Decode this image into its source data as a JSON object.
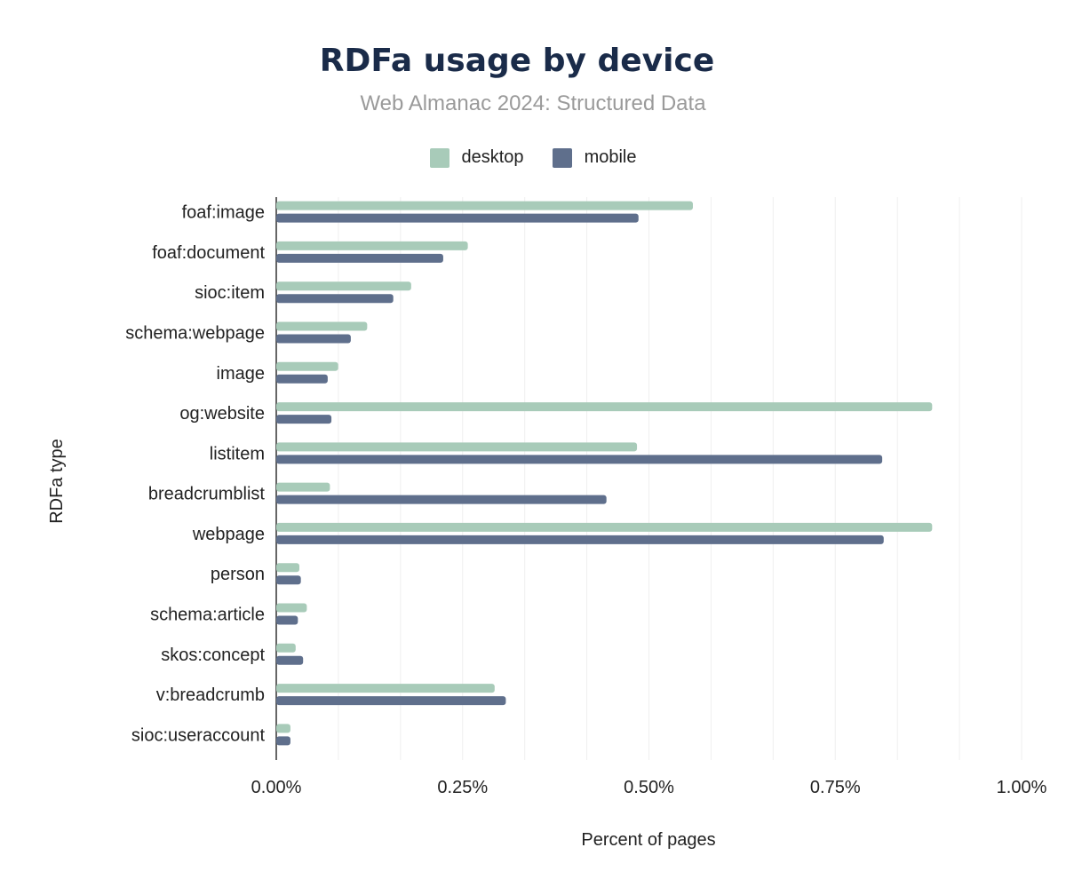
{
  "chart_data": {
    "type": "bar",
    "orientation": "horizontal",
    "title": "RDFa usage by device",
    "subtitle": "Web Almanac 2024: Structured Data",
    "xlabel": "Percent of pages",
    "ylabel": "RDFa type",
    "xlim": [
      0,
      1.0
    ],
    "x_ticks": [
      "0.00%",
      "0.25%",
      "0.50%",
      "0.75%",
      "1.00%"
    ],
    "legend_position": "top",
    "grid": true,
    "categories": [
      "foaf:image",
      "foaf:document",
      "sioc:item",
      "schema:webpage",
      "image",
      "og:website",
      "listitem",
      "breadcrumblist",
      "webpage",
      "person",
      "schema:article",
      "skos:concept",
      "v:breadcrumb",
      "sioc:useraccount"
    ],
    "series": [
      {
        "name": "desktop",
        "color": "#a8cbb9",
        "values": [
          0.559,
          0.257,
          0.181,
          0.122,
          0.083,
          0.88,
          0.484,
          0.072,
          0.88,
          0.031,
          0.041,
          0.026,
          0.293,
          0.019
        ]
      },
      {
        "name": "mobile",
        "color": "#5f6f8c",
        "values": [
          0.486,
          0.224,
          0.157,
          0.1,
          0.069,
          0.074,
          0.813,
          0.443,
          0.815,
          0.033,
          0.029,
          0.036,
          0.308,
          0.019
        ]
      }
    ]
  }
}
